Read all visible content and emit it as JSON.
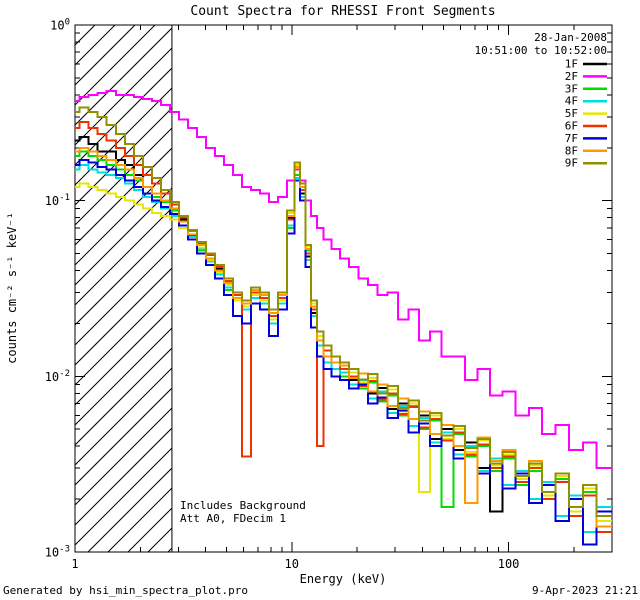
{
  "title": "Count Spectra for RHESSI Front Segments",
  "annotations": {
    "date": "28-Jan-2008",
    "time_range": "10:51:00 to 10:52:00",
    "note_line1": "Includes Background",
    "note_line2": "Att A0, FDecim 1",
    "footer_left": "Generated by hsi_min_spectra_plot.pro",
    "footer_right": "9-Apr-2023 21:21"
  },
  "colors": {
    "axis": "#000000",
    "title_text": "#000000",
    "date_text": "#000000",
    "time_text": "#007f7f",
    "background": "#ffffff"
  },
  "chart_data": {
    "type": "line",
    "mode": "histogram-step",
    "title": "Count Spectra for RHESSI Front Segments",
    "xlabel": "Energy (keV)",
    "ylabel": "counts cm⁻² s⁻¹ keV⁻¹",
    "xscale": "log",
    "yscale": "log",
    "xlim": [
      1,
      300
    ],
    "ylim": [
      0.001,
      1
    ],
    "x_ticks": [
      1,
      10,
      100
    ],
    "y_tick_exponents": [
      0,
      -1,
      -2,
      -3
    ],
    "grid": false,
    "legend_position": "top-right-inside",
    "hatch_region": {
      "xmin": 1,
      "xmax": 2.8,
      "style": "diagonal-hatch"
    },
    "x": [
      1.0,
      1.1,
      1.21,
      1.33,
      1.47,
      1.62,
      1.78,
      1.96,
      2.16,
      2.37,
      2.61,
      2.87,
      3.16,
      3.48,
      3.83,
      4.21,
      4.64,
      5.1,
      5.62,
      6.19,
      6.81,
      7.5,
      8.25,
      9.08,
      10.0,
      10.6,
      11.2,
      11.9,
      12.6,
      13.5,
      14.6,
      15.9,
      17.5,
      19.3,
      21.3,
      23.6,
      26.2,
      29.2,
      32.6,
      36.5,
      41.0,
      46.2,
      52.2,
      59.2,
      67.3,
      76.7,
      87.7,
      100.5,
      115.5,
      133.0,
      153.4,
      177.1,
      204.7,
      236.8,
      274.1
    ],
    "series": [
      {
        "name": "1F",
        "color": "#000000",
        "values": [
          0.22,
          0.23,
          0.21,
          0.19,
          0.19,
          0.17,
          0.16,
          0.14,
          0.12,
          0.11,
          0.1,
          0.089,
          0.078,
          0.063,
          0.057,
          0.05,
          0.041,
          0.033,
          0.029,
          0.025,
          0.031,
          0.027,
          0.021,
          0.029,
          0.08,
          0.15,
          0.11,
          0.048,
          0.023,
          0.017,
          0.014,
          0.011,
          0.012,
          0.0095,
          0.009,
          0.008,
          0.0086,
          0.0065,
          0.007,
          0.0052,
          0.006,
          0.0044,
          0.005,
          0.0038,
          0.0042,
          0.003,
          0.0017,
          0.0036,
          0.0025,
          0.0031,
          0.0021,
          0.0027,
          0.0018,
          0.0023,
          0.0015
        ]
      },
      {
        "name": "2F",
        "color": "#ff00ff",
        "values": [
          0.37,
          0.39,
          0.4,
          0.41,
          0.42,
          0.4,
          0.4,
          0.39,
          0.38,
          0.37,
          0.35,
          0.32,
          0.29,
          0.26,
          0.23,
          0.2,
          0.18,
          0.16,
          0.14,
          0.12,
          0.115,
          0.11,
          0.098,
          0.105,
          0.13,
          0.155,
          0.13,
          0.1,
          0.082,
          0.07,
          0.06,
          0.053,
          0.047,
          0.042,
          0.036,
          0.033,
          0.029,
          0.03,
          0.021,
          0.024,
          0.016,
          0.018,
          0.013,
          0.013,
          0.0095,
          0.011,
          0.0078,
          0.0082,
          0.006,
          0.0066,
          0.0047,
          0.0053,
          0.0038,
          0.0042,
          0.003
        ]
      },
      {
        "name": "3F",
        "color": "#00dd00",
        "values": [
          0.18,
          0.19,
          0.18,
          0.17,
          0.16,
          0.15,
          0.14,
          0.13,
          0.12,
          0.105,
          0.098,
          0.088,
          0.072,
          0.067,
          0.052,
          0.046,
          0.042,
          0.031,
          0.027,
          0.027,
          0.029,
          0.029,
          0.023,
          0.027,
          0.07,
          0.14,
          0.12,
          0.052,
          0.025,
          0.015,
          0.012,
          0.013,
          0.01,
          0.011,
          0.0085,
          0.0092,
          0.0072,
          0.0078,
          0.006,
          0.0068,
          0.005,
          0.0056,
          0.0018,
          0.0047,
          0.0035,
          0.004,
          0.0029,
          0.0034,
          0.0024,
          0.0029,
          0.002,
          0.0026,
          0.0017,
          0.0022,
          0.0014
        ]
      },
      {
        "name": "4F",
        "color": "#00dddd",
        "values": [
          0.15,
          0.16,
          0.15,
          0.145,
          0.14,
          0.135,
          0.125,
          0.115,
          0.105,
          0.098,
          0.09,
          0.082,
          0.07,
          0.062,
          0.053,
          0.045,
          0.038,
          0.032,
          0.027,
          0.024,
          0.028,
          0.026,
          0.02,
          0.026,
          0.072,
          0.135,
          0.105,
          0.046,
          0.022,
          0.015,
          0.012,
          0.011,
          0.0105,
          0.009,
          0.0095,
          0.0075,
          0.0082,
          0.0062,
          0.0068,
          0.0052,
          0.0058,
          0.0042,
          0.0048,
          0.0036,
          0.004,
          0.0029,
          0.0034,
          0.0024,
          0.0029,
          0.002,
          0.0025,
          0.0016,
          0.0021,
          0.0013,
          0.0018
        ]
      },
      {
        "name": "5F",
        "color": "#e6e600",
        "values": [
          0.12,
          0.125,
          0.12,
          0.115,
          0.11,
          0.105,
          0.1,
          0.095,
          0.09,
          0.085,
          0.082,
          0.078,
          0.07,
          0.06,
          0.054,
          0.046,
          0.039,
          0.033,
          0.027,
          0.025,
          0.029,
          0.027,
          0.021,
          0.027,
          0.085,
          0.16,
          0.12,
          0.055,
          0.026,
          0.017,
          0.013,
          0.012,
          0.011,
          0.0105,
          0.0092,
          0.0098,
          0.0076,
          0.0084,
          0.0063,
          0.007,
          0.0022,
          0.006,
          0.0044,
          0.005,
          0.0037,
          0.0043,
          0.0031,
          0.0036,
          0.0026,
          0.0031,
          0.0021,
          0.0027,
          0.0017,
          0.0023,
          0.0015
        ]
      },
      {
        "name": "6F",
        "color": "#ee3300",
        "values": [
          0.26,
          0.28,
          0.26,
          0.24,
          0.22,
          0.2,
          0.18,
          0.16,
          0.14,
          0.125,
          0.11,
          0.095,
          0.08,
          0.068,
          0.057,
          0.049,
          0.042,
          0.035,
          0.029,
          0.0035,
          0.03,
          0.028,
          0.022,
          0.028,
          0.078,
          0.15,
          0.115,
          0.05,
          0.024,
          0.004,
          0.014,
          0.012,
          0.011,
          0.01,
          0.0088,
          0.0094,
          0.0074,
          0.008,
          0.0061,
          0.0067,
          0.0051,
          0.0057,
          0.0043,
          0.0048,
          0.0036,
          0.0041,
          0.003,
          0.0035,
          0.0025,
          0.003,
          0.002,
          0.0025,
          0.0016,
          0.0021,
          0.0013
        ]
      },
      {
        "name": "7F",
        "color": "#0000dd",
        "values": [
          0.16,
          0.17,
          0.165,
          0.155,
          0.15,
          0.14,
          0.13,
          0.12,
          0.11,
          0.1,
          0.092,
          0.084,
          0.072,
          0.06,
          0.05,
          0.043,
          0.036,
          0.029,
          0.022,
          0.02,
          0.026,
          0.024,
          0.017,
          0.024,
          0.065,
          0.13,
          0.1,
          0.042,
          0.019,
          0.013,
          0.011,
          0.01,
          0.0095,
          0.0085,
          0.009,
          0.007,
          0.0076,
          0.0058,
          0.0064,
          0.0048,
          0.0054,
          0.004,
          0.0046,
          0.0034,
          0.0039,
          0.0028,
          0.0033,
          0.0023,
          0.0028,
          0.0019,
          0.0024,
          0.0015,
          0.002,
          0.0011,
          0.0017
        ]
      },
      {
        "name": "8F",
        "color": "#ff9900",
        "values": [
          0.19,
          0.2,
          0.19,
          0.18,
          0.17,
          0.16,
          0.15,
          0.135,
          0.12,
          0.11,
          0.1,
          0.09,
          0.076,
          0.064,
          0.056,
          0.047,
          0.04,
          0.034,
          0.028,
          0.026,
          0.031,
          0.029,
          0.023,
          0.029,
          0.082,
          0.155,
          0.12,
          0.053,
          0.025,
          0.016,
          0.013,
          0.012,
          0.0115,
          0.0098,
          0.0104,
          0.0082,
          0.009,
          0.0068,
          0.0075,
          0.0057,
          0.0063,
          0.0047,
          0.0053,
          0.004,
          0.0019,
          0.0045,
          0.0033,
          0.0038,
          0.0027,
          0.0033,
          0.0022,
          0.0028,
          0.0018,
          0.0024,
          0.0014
        ]
      },
      {
        "name": "9F",
        "color": "#909000",
        "values": [
          0.32,
          0.34,
          0.32,
          0.3,
          0.27,
          0.24,
          0.21,
          0.18,
          0.155,
          0.135,
          0.115,
          0.098,
          0.082,
          0.068,
          0.058,
          0.05,
          0.043,
          0.036,
          0.03,
          0.027,
          0.032,
          0.03,
          0.024,
          0.03,
          0.088,
          0.165,
          0.125,
          0.056,
          0.027,
          0.018,
          0.015,
          0.013,
          0.012,
          0.011,
          0.0096,
          0.0103,
          0.008,
          0.0088,
          0.0066,
          0.0073,
          0.0056,
          0.0062,
          0.0046,
          0.0052,
          0.0039,
          0.0044,
          0.0032,
          0.0037,
          0.0027,
          0.0032,
          0.0022,
          0.0028,
          0.0018,
          0.0024,
          0.0016
        ]
      }
    ]
  }
}
